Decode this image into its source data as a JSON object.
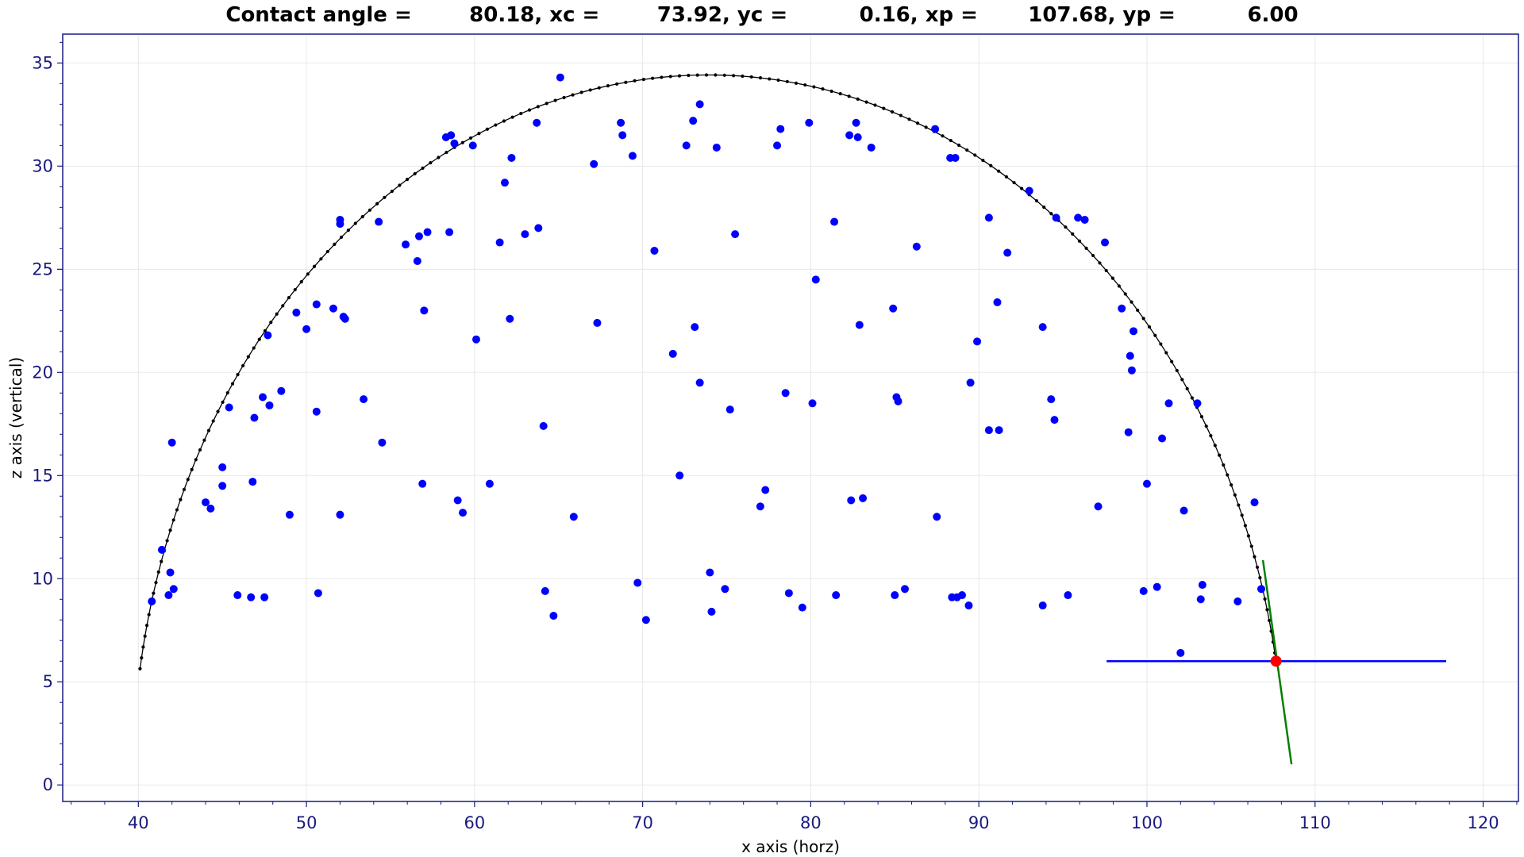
{
  "chart_data": {
    "type": "scatter",
    "title": "Contact angle =        80.18, xc =        73.92, yc =          0.16, xp =       107.68, yp =          6.00",
    "xlabel": "x axis (horz)",
    "ylabel": "z axis (vertical)",
    "xlim": [
      35.5,
      122.1
    ],
    "ylim": [
      -0.8,
      36.4
    ],
    "x_ticks": [
      40,
      50,
      60,
      70,
      80,
      90,
      100,
      110,
      120
    ],
    "y_ticks": [
      0,
      5,
      10,
      15,
      20,
      25,
      30,
      35
    ],
    "grid": true,
    "contact_angle": 80.18,
    "xc": 73.92,
    "yc": 0.16,
    "xp": 107.68,
    "yp": 6.0,
    "colors": {
      "points": "#0000ff",
      "fit_circle": "#000000",
      "baseline": "#0000ff",
      "tangent": "#008000",
      "contact_point": "#ff0000",
      "tick_text": "#1a1a80",
      "frame": "#1a1a80",
      "grid": "#e8e8e8"
    },
    "series": [
      {
        "kind": "points",
        "x": [
          40.8,
          41.4,
          41.8,
          41.9,
          42.0,
          42.1,
          44.0,
          44.3,
          45.0,
          45.0,
          45.4,
          45.9,
          46.7,
          46.8,
          46.9,
          47.4,
          47.5,
          47.7,
          47.8,
          48.5,
          49.0,
          49.4,
          50.0,
          50.6,
          50.6,
          50.7,
          51.6,
          52.0,
          52.0,
          52.0,
          52.2,
          52.3,
          53.4,
          54.3,
          54.5,
          55.9,
          56.6,
          56.7,
          56.9,
          57.0,
          57.2,
          58.3,
          58.5,
          58.6,
          58.8,
          59.0,
          59.3,
          59.9,
          60.1,
          60.9,
          61.5,
          61.8,
          62.1,
          62.2,
          63.0,
          63.7,
          63.8,
          64.1,
          64.2,
          64.7,
          65.1,
          65.9,
          67.1,
          67.3,
          68.7,
          68.8,
          69.4,
          69.7,
          70.2,
          70.7,
          71.8,
          72.2,
          72.6,
          73.0,
          73.1,
          73.4,
          73.4,
          74.0,
          74.1,
          74.4,
          74.9,
          75.2,
          75.5,
          77.0,
          77.3,
          78.0,
          78.2,
          78.5,
          78.7,
          79.5,
          79.9,
          80.1,
          80.3,
          81.4,
          81.5,
          82.3,
          82.4,
          82.7,
          82.8,
          82.9,
          83.1,
          83.6,
          84.9,
          85.0,
          85.1,
          85.2,
          85.6,
          86.3,
          87.4,
          87.5,
          88.3,
          88.4,
          88.6,
          88.7,
          89.0,
          89.4,
          89.5,
          89.9,
          90.6,
          90.6,
          91.1,
          91.2,
          91.7,
          93.0,
          93.8,
          93.8,
          94.3,
          94.5,
          94.6,
          95.3,
          95.9,
          96.3,
          97.1,
          97.5,
          98.5,
          98.9,
          99.0,
          99.1,
          99.2,
          99.8,
          100.0,
          100.6,
          100.9,
          101.3,
          102.0,
          102.2,
          103.0,
          103.2,
          103.3,
          105.4,
          106.4,
          106.8
        ],
        "y": [
          8.9,
          11.4,
          9.2,
          10.3,
          16.6,
          9.5,
          13.7,
          13.4,
          15.4,
          14.5,
          18.3,
          9.2,
          9.1,
          14.7,
          17.8,
          18.8,
          9.1,
          21.8,
          18.4,
          19.1,
          13.1,
          22.9,
          22.1,
          23.3,
          18.1,
          9.3,
          23.1,
          27.2,
          27.4,
          13.1,
          22.7,
          22.6,
          18.7,
          27.3,
          16.6,
          26.2,
          25.4,
          26.6,
          14.6,
          23.0,
          26.8,
          31.4,
          26.8,
          31.5,
          31.1,
          13.8,
          13.2,
          31.0,
          21.6,
          14.6,
          26.3,
          29.2,
          22.6,
          30.4,
          26.7,
          32.1,
          27.0,
          17.4,
          9.4,
          8.2,
          34.3,
          13.0,
          30.1,
          22.4,
          32.1,
          31.5,
          30.5,
          9.8,
          8.0,
          25.9,
          20.9,
          15.0,
          31.0,
          32.2,
          22.2,
          33.0,
          19.5,
          10.3,
          8.4,
          30.9,
          9.5,
          18.2,
          26.7,
          13.5,
          14.3,
          31.0,
          31.8,
          19.0,
          9.3,
          8.6,
          32.1,
          18.5,
          24.5,
          27.3,
          9.2,
          31.5,
          13.8,
          32.1,
          31.4,
          22.3,
          13.9,
          30.9,
          23.1,
          9.2,
          18.8,
          18.6,
          9.5,
          26.1,
          31.8,
          13.0,
          30.4,
          9.1,
          30.4,
          9.1,
          9.2,
          8.7,
          19.5,
          21.5,
          27.5,
          17.2,
          23.4,
          17.2,
          25.8,
          28.8,
          22.2,
          8.7,
          18.7,
          17.7,
          27.5,
          9.2,
          27.5,
          27.4,
          13.5,
          26.3,
          23.1,
          17.1,
          20.8,
          20.1,
          22.0,
          9.4,
          14.6,
          9.6,
          16.8,
          18.5,
          6.4,
          13.3,
          18.5,
          9.0,
          9.7,
          8.9,
          13.7,
          9.5
        ]
      },
      {
        "kind": "fit-circle",
        "center_x": 73.92,
        "center_y": 0.16,
        "radius": 34.26,
        "x_range": [
          40.1,
          107.7
        ]
      },
      {
        "kind": "baseline",
        "x": [
          97.6,
          117.8
        ],
        "y": [
          6.0,
          6.0
        ]
      },
      {
        "kind": "tangent",
        "x": [
          106.9,
          108.6
        ],
        "y": [
          10.9,
          1.0
        ]
      },
      {
        "kind": "contact-point",
        "x": [
          107.68
        ],
        "y": [
          6.0
        ]
      }
    ]
  }
}
